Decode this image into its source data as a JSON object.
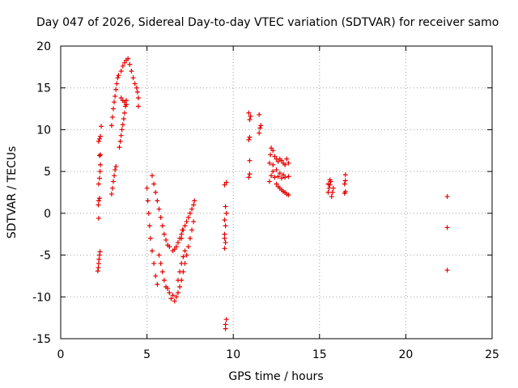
{
  "chart_data": {
    "type": "scatter",
    "title": "Day 047 of 2026, Sidereal Day-to-day VTEC variation (SDTVAR) for receiver samo",
    "xlabel": "GPS time / hours",
    "ylabel": "SDTVAR / TECUs",
    "xlim": [
      0,
      25
    ],
    "ylim": [
      -15,
      20
    ],
    "xticks": [
      0,
      5,
      10,
      15,
      20,
      25
    ],
    "yticks": [
      -15,
      -10,
      -5,
      0,
      5,
      10,
      15,
      20
    ],
    "grid": true,
    "marker": "plus",
    "color": "#e60000",
    "series": [
      {
        "name": "SDTVAR",
        "points": [
          [
            2.15,
            -6.9
          ],
          [
            2.18,
            -6.5
          ],
          [
            2.2,
            -6.0
          ],
          [
            2.22,
            -5.5
          ],
          [
            2.25,
            -5.0
          ],
          [
            2.28,
            -4.6
          ],
          [
            2.2,
            -0.6
          ],
          [
            2.18,
            1.0
          ],
          [
            2.2,
            1.5
          ],
          [
            2.25,
            1.8
          ],
          [
            2.2,
            3.5
          ],
          [
            2.25,
            4.2
          ],
          [
            2.28,
            5.0
          ],
          [
            2.3,
            5.8
          ],
          [
            2.25,
            6.9
          ],
          [
            2.3,
            7.0
          ],
          [
            2.2,
            8.6
          ],
          [
            2.25,
            8.9
          ],
          [
            2.3,
            9.2
          ],
          [
            2.35,
            10.4
          ],
          [
            2.95,
            2.3
          ],
          [
            3.0,
            3.0
          ],
          [
            3.05,
            3.8
          ],
          [
            3.1,
            4.5
          ],
          [
            3.15,
            5.2
          ],
          [
            3.2,
            5.6
          ],
          [
            2.95,
            10.5
          ],
          [
            3.0,
            11.5
          ],
          [
            3.05,
            12.5
          ],
          [
            3.1,
            13.3
          ],
          [
            3.15,
            14.0
          ],
          [
            3.2,
            14.8
          ],
          [
            3.25,
            15.5
          ],
          [
            3.3,
            16.2
          ],
          [
            3.35,
            16.5
          ],
          [
            3.4,
            7.9
          ],
          [
            3.45,
            8.6
          ],
          [
            3.5,
            9.3
          ],
          [
            3.55,
            10.0
          ],
          [
            3.6,
            10.6
          ],
          [
            3.65,
            11.3
          ],
          [
            3.7,
            12.0
          ],
          [
            3.75,
            12.8
          ],
          [
            3.8,
            13.5
          ],
          [
            3.5,
            17.0
          ],
          [
            3.6,
            17.6
          ],
          [
            3.7,
            18.0
          ],
          [
            3.8,
            18.3
          ],
          [
            3.9,
            18.5
          ],
          [
            4.0,
            17.8
          ],
          [
            4.1,
            17.0
          ],
          [
            4.2,
            16.2
          ],
          [
            3.5,
            13.8
          ],
          [
            3.6,
            13.5
          ],
          [
            3.7,
            13.3
          ],
          [
            3.8,
            13.0
          ],
          [
            4.3,
            15.5
          ],
          [
            4.4,
            15.0
          ],
          [
            4.45,
            14.5
          ],
          [
            4.5,
            13.8
          ],
          [
            4.5,
            12.8
          ],
          [
            5.0,
            3.0
          ],
          [
            5.05,
            1.5
          ],
          [
            5.1,
            0.0
          ],
          [
            5.15,
            -1.5
          ],
          [
            5.2,
            -3.0
          ],
          [
            5.3,
            -4.5
          ],
          [
            5.4,
            -6.0
          ],
          [
            5.5,
            -7.5
          ],
          [
            5.6,
            -8.5
          ],
          [
            5.3,
            4.5
          ],
          [
            5.4,
            3.5
          ],
          [
            5.5,
            2.5
          ],
          [
            5.6,
            1.5
          ],
          [
            5.7,
            0.5
          ],
          [
            5.8,
            -0.5
          ],
          [
            5.9,
            -1.5
          ],
          [
            6.0,
            -2.5
          ],
          [
            6.1,
            -3.2
          ],
          [
            6.2,
            -3.8
          ],
          [
            6.3,
            -4.0
          ],
          [
            5.7,
            -5.0
          ],
          [
            5.8,
            -6.0
          ],
          [
            5.9,
            -7.0
          ],
          [
            6.0,
            -8.0
          ],
          [
            6.1,
            -8.8
          ],
          [
            6.2,
            -9.0
          ],
          [
            6.3,
            -9.5
          ],
          [
            6.4,
            -10.2
          ],
          [
            6.5,
            -9.8
          ],
          [
            6.5,
            -4.5
          ],
          [
            6.6,
            -4.3
          ],
          [
            6.7,
            -4.0
          ],
          [
            6.8,
            -3.5
          ],
          [
            6.9,
            -3.0
          ],
          [
            7.0,
            -2.5
          ],
          [
            7.1,
            -2.0
          ],
          [
            7.2,
            -1.5
          ],
          [
            7.3,
            -1.0
          ],
          [
            7.4,
            -0.5
          ],
          [
            7.5,
            0.0
          ],
          [
            7.6,
            0.5
          ],
          [
            7.7,
            1.0
          ],
          [
            7.75,
            1.5
          ],
          [
            6.6,
            -10.5
          ],
          [
            6.7,
            -10.0
          ],
          [
            6.8,
            -9.5
          ],
          [
            6.9,
            -8.8
          ],
          [
            7.0,
            -8.0
          ],
          [
            7.1,
            -7.0
          ],
          [
            7.2,
            -6.0
          ],
          [
            7.3,
            -5.0
          ],
          [
            7.4,
            -4.0
          ],
          [
            7.5,
            -3.0
          ],
          [
            7.6,
            -2.0
          ],
          [
            7.7,
            -1.0
          ],
          [
            6.8,
            -8.0
          ],
          [
            6.9,
            -7.0
          ],
          [
            7.0,
            -6.0
          ],
          [
            7.1,
            -5.2
          ],
          [
            7.2,
            -4.5
          ],
          [
            7.0,
            -3.0
          ],
          [
            7.05,
            -2.0
          ],
          [
            9.55,
            -13.8
          ],
          [
            9.55,
            -13.3
          ],
          [
            9.6,
            -12.7
          ],
          [
            9.5,
            -4.2
          ],
          [
            9.55,
            -3.5
          ],
          [
            9.5,
            -2.5
          ],
          [
            9.55,
            -1.5
          ],
          [
            9.5,
            -0.8
          ],
          [
            9.6,
            0.0
          ],
          [
            9.55,
            0.8
          ],
          [
            9.5,
            -3.0
          ],
          [
            9.5,
            3.4
          ],
          [
            9.6,
            3.7
          ],
          [
            10.9,
            4.3
          ],
          [
            10.95,
            4.7
          ],
          [
            10.95,
            6.3
          ],
          [
            10.9,
            8.8
          ],
          [
            10.95,
            9.1
          ],
          [
            10.95,
            11.2
          ],
          [
            11.0,
            11.6
          ],
          [
            10.9,
            12.0
          ],
          [
            11.5,
            9.6
          ],
          [
            11.55,
            10.2
          ],
          [
            11.6,
            10.5
          ],
          [
            11.5,
            11.8
          ],
          [
            12.1,
            3.8
          ],
          [
            12.2,
            4.5
          ],
          [
            12.3,
            5.0
          ],
          [
            12.1,
            6.0
          ],
          [
            12.15,
            7.0
          ],
          [
            12.2,
            7.8
          ],
          [
            12.3,
            7.5
          ],
          [
            12.4,
            6.8
          ],
          [
            12.5,
            6.5
          ],
          [
            12.6,
            6.2
          ],
          [
            12.7,
            6.5
          ],
          [
            12.8,
            6.3
          ],
          [
            12.9,
            6.0
          ],
          [
            13.0,
            5.8
          ],
          [
            13.1,
            6.5
          ],
          [
            13.2,
            6.0
          ],
          [
            12.5,
            3.5
          ],
          [
            12.6,
            3.2
          ],
          [
            12.7,
            3.0
          ],
          [
            12.8,
            2.8
          ],
          [
            12.9,
            2.6
          ],
          [
            13.0,
            2.5
          ],
          [
            13.1,
            2.3
          ],
          [
            13.2,
            2.2
          ],
          [
            12.4,
            4.3
          ],
          [
            12.6,
            4.4
          ],
          [
            12.8,
            4.2
          ],
          [
            13.0,
            4.3
          ],
          [
            13.2,
            4.4
          ],
          [
            12.3,
            5.8
          ],
          [
            12.5,
            5.2
          ],
          [
            12.7,
            4.8
          ],
          [
            12.9,
            4.6
          ],
          [
            15.5,
            2.5
          ],
          [
            15.55,
            3.0
          ],
          [
            15.6,
            3.4
          ],
          [
            15.65,
            3.8
          ],
          [
            15.6,
            4.0
          ],
          [
            15.7,
            2.0
          ],
          [
            15.75,
            2.5
          ],
          [
            15.8,
            3.0
          ],
          [
            15.5,
            3.5
          ],
          [
            16.45,
            2.4
          ],
          [
            16.5,
            2.6
          ],
          [
            16.45,
            3.5
          ],
          [
            16.5,
            3.9
          ],
          [
            16.5,
            4.6
          ],
          [
            22.4,
            -6.8
          ],
          [
            22.4,
            -1.7
          ],
          [
            22.4,
            2.0
          ]
        ]
      }
    ]
  }
}
